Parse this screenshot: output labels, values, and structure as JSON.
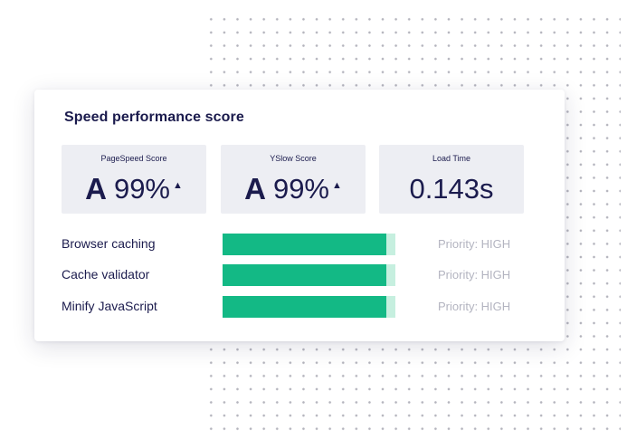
{
  "card": {
    "title": "Speed performance score"
  },
  "scores": [
    {
      "label": "PageSpeed Score",
      "grade": "A",
      "value": "99%",
      "trend": "▲"
    },
    {
      "label": "YSlow Score",
      "grade": "A",
      "value": "99%",
      "trend": "▲"
    },
    {
      "label": "Load Time",
      "value": "0.143s"
    }
  ],
  "recommendations": [
    {
      "label": "Browser caching",
      "score_percent": 95,
      "priority": "Priority: HIGH"
    },
    {
      "label": "Cache validator",
      "score_percent": 95,
      "priority": "Priority: HIGH"
    },
    {
      "label": "Minify JavaScript",
      "score_percent": 95,
      "priority": "Priority: HIGH"
    }
  ],
  "colors": {
    "text": "#1b1b4d",
    "tile_background": "#edeef3",
    "bar_fill": "#13b985",
    "bar_track": "#c6efdf",
    "priority_text": "#b3b4c0"
  }
}
